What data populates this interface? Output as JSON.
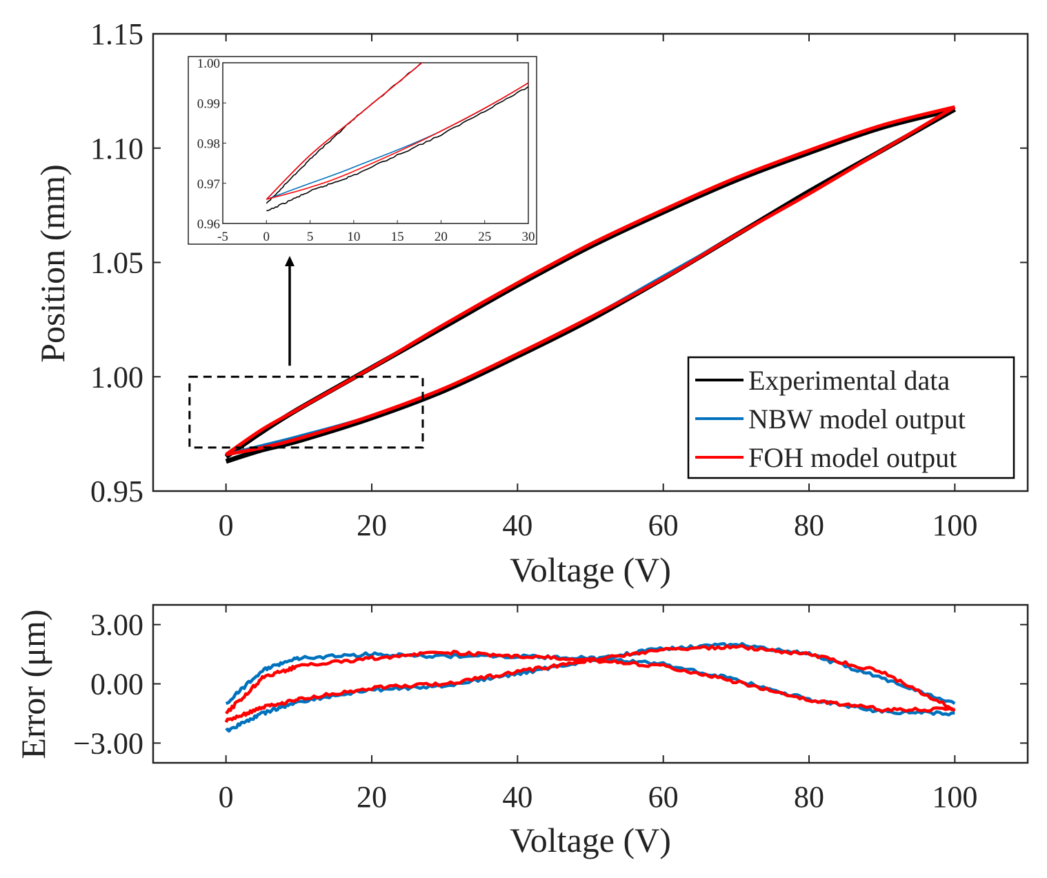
{
  "chart_data": [
    {
      "type": "line",
      "xlabel": "Voltage (V)",
      "ylabel": "Position (mm)",
      "xlim": [
        -10,
        110
      ],
      "ylim": [
        0.95,
        1.15
      ],
      "xticks": [
        "0",
        "20",
        "40",
        "60",
        "80",
        "100"
      ],
      "yticks": [
        "0.95",
        "1.00",
        "1.05",
        "1.10",
        "1.15"
      ],
      "legend": {
        "placement": "bottom-right",
        "entries": [
          "Experimental data",
          "NBW model output",
          "FOH model output"
        ]
      },
      "colors": {
        "experimental": "#000000",
        "nbw": "#0072BD",
        "foh": "#FF0000"
      },
      "series": [
        {
          "name": "Experimental data",
          "ascending": {
            "x": [
              0,
              5,
              10,
              20,
              30,
              40,
              50,
              60,
              70,
              80,
              90,
              100
            ],
            "y": [
              0.963,
              0.968,
              0.972,
              0.982,
              0.994,
              1.009,
              1.025,
              1.043,
              1.062,
              1.081,
              1.099,
              1.117
            ]
          },
          "descending": {
            "x": [
              100,
              90,
              80,
              70,
              60,
              50,
              40,
              30,
              20,
              10,
              5,
              0
            ],
            "y": [
              1.117,
              1.109,
              1.098,
              1.086,
              1.072,
              1.057,
              1.04,
              1.022,
              1.004,
              0.986,
              0.976,
              0.965
            ]
          }
        },
        {
          "name": "NBW model output",
          "ascending": {
            "x": [
              0,
              5,
              10,
              20,
              30,
              40,
              50,
              60,
              70,
              80,
              90,
              100
            ],
            "y": [
              0.966,
              0.97,
              0.974,
              0.983,
              0.995,
              1.01,
              1.026,
              1.044,
              1.062,
              1.08,
              1.099,
              1.118
            ]
          },
          "descending": {
            "x": [
              100,
              90,
              80,
              70,
              60,
              50,
              40,
              30,
              20,
              10,
              5,
              0
            ],
            "y": [
              1.118,
              1.11,
              1.099,
              1.087,
              1.073,
              1.058,
              1.041,
              1.023,
              1.004,
              0.986,
              0.977,
              0.966
            ]
          }
        },
        {
          "name": "FOH model output",
          "ascending": {
            "x": [
              0,
              5,
              10,
              20,
              30,
              40,
              50,
              60,
              70,
              80,
              90,
              100
            ],
            "y": [
              0.966,
              0.969,
              0.973,
              0.983,
              0.995,
              1.01,
              1.026,
              1.043,
              1.062,
              1.08,
              1.099,
              1.118
            ]
          },
          "descending": {
            "x": [
              100,
              90,
              80,
              70,
              60,
              50,
              40,
              30,
              20,
              10,
              5,
              0
            ],
            "y": [
              1.118,
              1.11,
              1.099,
              1.087,
              1.073,
              1.058,
              1.041,
              1.023,
              1.004,
              0.986,
              0.977,
              0.966
            ]
          }
        }
      ],
      "zoom_region": {
        "xlim": [
          -5,
          27
        ],
        "ylim": [
          0.96,
          1.0
        ]
      },
      "inset": {
        "xlim": [
          -5,
          30
        ],
        "ylim": [
          0.96,
          1.0
        ],
        "xticks": [
          "-5",
          "0",
          "5",
          "10",
          "15",
          "20",
          "25",
          "30"
        ],
        "yticks": [
          "0.96",
          "0.97",
          "0.98",
          "0.99",
          "1.00"
        ]
      }
    },
    {
      "type": "line",
      "xlabel": "Voltage (V)",
      "ylabel": "Error (μm)",
      "xlim": [
        -10,
        110
      ],
      "ylim": [
        -4,
        4
      ],
      "xticks": [
        "0",
        "20",
        "40",
        "60",
        "80",
        "100"
      ],
      "yticks": [
        "3.00",
        "0.00",
        "−3.00"
      ],
      "series": [
        {
          "name": "NBW model output",
          "ascending": {
            "x": [
              0,
              5,
              10,
              20,
              30,
              40,
              50,
              60,
              70,
              80,
              90,
              100
            ],
            "y": [
              -2.4,
              -1.5,
              -0.9,
              -0.3,
              -0.1,
              0.5,
              1.2,
              1.8,
              2.0,
              1.5,
              0.3,
              -1.0
            ]
          },
          "descending": {
            "x": [
              100,
              90,
              80,
              70,
              60,
              50,
              40,
              30,
              20,
              10,
              5,
              0
            ],
            "y": [
              -1.5,
              -1.4,
              -0.8,
              0.2,
              1.0,
              1.3,
              1.4,
              1.4,
              1.5,
              1.3,
              0.7,
              -1.0
            ]
          }
        },
        {
          "name": "FOH model output",
          "ascending": {
            "x": [
              0,
              5,
              10,
              20,
              30,
              40,
              50,
              60,
              70,
              80,
              90,
              100
            ],
            "y": [
              -1.9,
              -1.2,
              -0.8,
              -0.2,
              0.0,
              0.6,
              1.2,
              1.7,
              1.9,
              1.5,
              0.6,
              -1.3
            ]
          },
          "descending": {
            "x": [
              100,
              90,
              80,
              70,
              60,
              50,
              40,
              30,
              20,
              10,
              5,
              0
            ],
            "y": [
              -1.3,
              -1.3,
              -0.8,
              0.1,
              0.9,
              1.2,
              1.4,
              1.6,
              1.3,
              0.9,
              0.3,
              -1.5
            ]
          }
        }
      ]
    }
  ]
}
